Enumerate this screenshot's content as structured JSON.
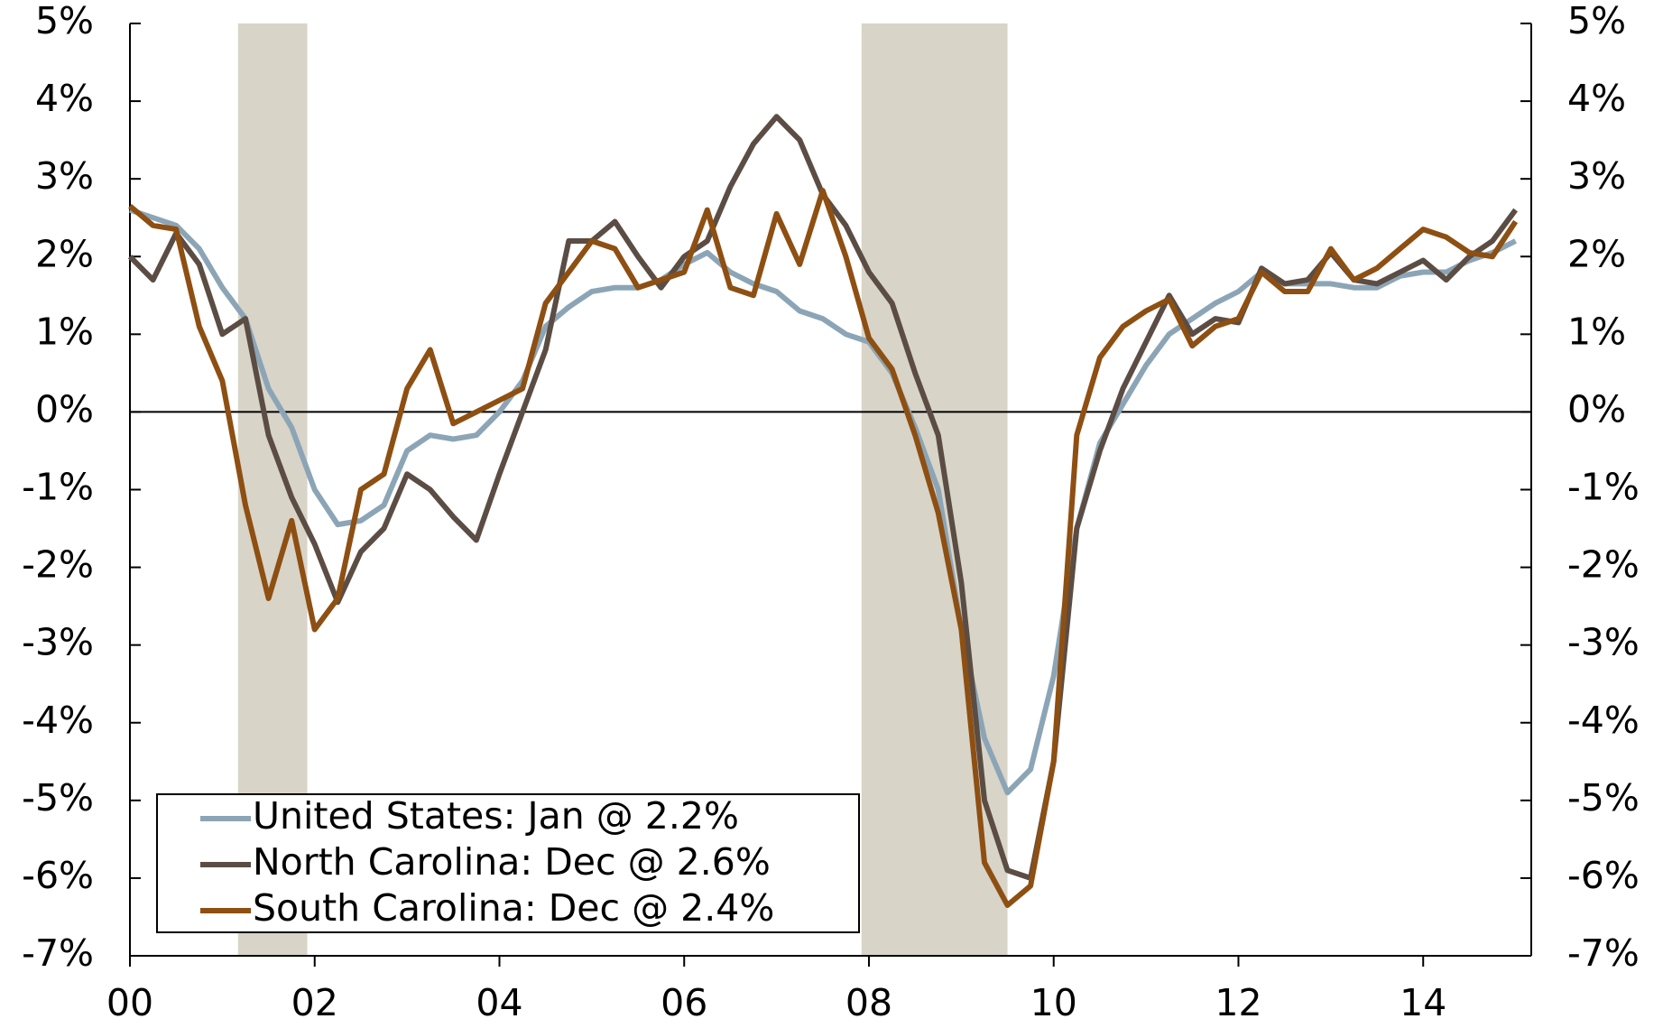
{
  "chart_data": {
    "type": "line",
    "x": [
      2000,
      2000.25,
      2000.5,
      2000.75,
      2001,
      2001.25,
      2001.5,
      2001.75,
      2002,
      2002.25,
      2002.5,
      2002.75,
      2003,
      2003.25,
      2003.5,
      2003.75,
      2004,
      2004.25,
      2004.5,
      2004.75,
      2005,
      2005.25,
      2005.5,
      2005.75,
      2006,
      2006.25,
      2006.5,
      2006.75,
      2007,
      2007.25,
      2007.5,
      2007.75,
      2008,
      2008.25,
      2008.5,
      2008.75,
      2009,
      2009.25,
      2009.5,
      2009.75,
      2010,
      2010.25,
      2010.5,
      2010.75,
      2011,
      2011.25,
      2011.5,
      2011.75,
      2012,
      2012.25,
      2012.5,
      2012.75,
      2013,
      2013.25,
      2013.5,
      2013.75,
      2014,
      2014.25,
      2014.5,
      2014.75,
      2015
    ],
    "series": [
      {
        "name": "United States: Jan @ 2.2%",
        "color": "#8ca5b6",
        "values": [
          2.6,
          2.5,
          2.4,
          2.1,
          1.6,
          1.2,
          0.3,
          -0.2,
          -1.0,
          -1.45,
          -1.4,
          -1.2,
          -0.5,
          -0.3,
          -0.35,
          -0.3,
          0.0,
          0.4,
          1.1,
          1.35,
          1.55,
          1.6,
          1.6,
          1.7,
          1.9,
          2.05,
          1.8,
          1.65,
          1.55,
          1.3,
          1.2,
          1.0,
          0.9,
          0.5,
          -0.2,
          -1.0,
          -2.8,
          -4.2,
          -4.9,
          -4.6,
          -3.4,
          -1.5,
          -0.4,
          0.1,
          0.6,
          1.0,
          1.2,
          1.4,
          1.55,
          1.8,
          1.65,
          1.65,
          1.65,
          1.6,
          1.6,
          1.75,
          1.8,
          1.8,
          1.95,
          2.05,
          2.2
        ]
      },
      {
        "name": "North Carolina: Dec @ 2.6%",
        "color": "#5b4d44",
        "values": [
          2.0,
          1.7,
          2.3,
          1.9,
          1.0,
          1.2,
          -0.3,
          -1.1,
          -1.7,
          -2.45,
          -1.8,
          -1.5,
          -0.8,
          -1.0,
          -1.35,
          -1.65,
          -0.8,
          0.0,
          0.8,
          2.2,
          2.2,
          2.45,
          2.0,
          1.6,
          2.0,
          2.2,
          2.9,
          3.45,
          3.8,
          3.5,
          2.8,
          2.4,
          1.8,
          1.4,
          0.5,
          -0.3,
          -2.2,
          -5.0,
          -5.9,
          -6.0,
          -4.5,
          -1.5,
          -0.5,
          0.3,
          0.9,
          1.5,
          1.0,
          1.2,
          1.15,
          1.85,
          1.65,
          1.7,
          2.05,
          1.7,
          1.65,
          1.8,
          1.95,
          1.7,
          2.0,
          2.2,
          2.6
        ]
      },
      {
        "name": "South Carolina: Dec @ 2.4%",
        "color": "#8e4f12",
        "values": [
          2.65,
          2.4,
          2.35,
          1.1,
          0.4,
          -1.2,
          -2.4,
          -1.4,
          -2.8,
          -2.4,
          -1.0,
          -0.8,
          0.3,
          0.8,
          -0.15,
          0.0,
          0.15,
          0.3,
          1.4,
          1.8,
          2.2,
          2.1,
          1.6,
          1.7,
          1.8,
          2.6,
          1.6,
          1.5,
          2.55,
          1.9,
          2.85,
          2.0,
          0.95,
          0.55,
          -0.3,
          -1.3,
          -2.8,
          -5.8,
          -6.35,
          -6.1,
          -4.5,
          -0.3,
          0.7,
          1.1,
          1.3,
          1.45,
          0.85,
          1.1,
          1.2,
          1.8,
          1.55,
          1.55,
          2.1,
          1.7,
          1.85,
          2.1,
          2.35,
          2.25,
          2.05,
          2.0,
          2.45
        ]
      }
    ],
    "shaded_periods": [
      [
        2001.17,
        2001.92
      ],
      [
        2007.92,
        2009.5
      ]
    ],
    "shade_color": "#d8d4c8",
    "xlim": [
      2000,
      2015.17
    ],
    "xticks": [
      {
        "value": 2000,
        "label": "00"
      },
      {
        "value": 2002,
        "label": "02"
      },
      {
        "value": 2004,
        "label": "04"
      },
      {
        "value": 2006,
        "label": "06"
      },
      {
        "value": 2008,
        "label": "08"
      },
      {
        "value": 2010,
        "label": "10"
      },
      {
        "value": 2012,
        "label": "12"
      },
      {
        "value": 2014,
        "label": "14"
      }
    ],
    "ylim": [
      -7,
      5
    ],
    "yticks": [
      {
        "value": -7,
        "label": "-7%"
      },
      {
        "value": -6,
        "label": "-6%"
      },
      {
        "value": -5,
        "label": "-5%"
      },
      {
        "value": -4,
        "label": "-4%"
      },
      {
        "value": -3,
        "label": "-3%"
      },
      {
        "value": -2,
        "label": "-2%"
      },
      {
        "value": -1,
        "label": "-1%"
      },
      {
        "value": 0,
        "label": "0%"
      },
      {
        "value": 1,
        "label": "1%"
      },
      {
        "value": 2,
        "label": "2%"
      },
      {
        "value": 3,
        "label": "3%"
      },
      {
        "value": 4,
        "label": "4%"
      },
      {
        "value": 5,
        "label": "5%"
      }
    ],
    "y2lim": [
      -7,
      5
    ],
    "y2ticks": [
      {
        "value": -7,
        "label": "-7%"
      },
      {
        "value": -6,
        "label": "-6%"
      },
      {
        "value": -5,
        "label": "-5%"
      },
      {
        "value": -4,
        "label": "-4%"
      },
      {
        "value": -3,
        "label": "-3%"
      },
      {
        "value": -2,
        "label": "-2%"
      },
      {
        "value": -1,
        "label": "-1%"
      },
      {
        "value": 0,
        "label": "0%"
      },
      {
        "value": 1,
        "label": "1%"
      },
      {
        "value": 2,
        "label": "2%"
      },
      {
        "value": 3,
        "label": "3%"
      },
      {
        "value": 4,
        "label": "4%"
      },
      {
        "value": 5,
        "label": "5%"
      }
    ],
    "legend": "lower left"
  }
}
